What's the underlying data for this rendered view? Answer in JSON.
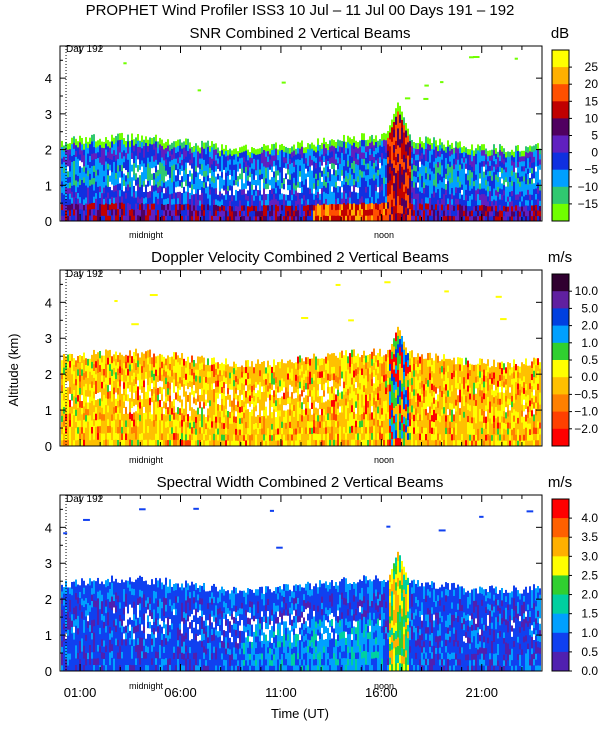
{
  "header": {
    "title": "PROPHET Wind Profiler ISS3  10 Jul – 11 Jul 00 Days 191 – 192"
  },
  "common": {
    "day_marker": "Day 192",
    "midnight_label": "midnight",
    "noon_label": "noon",
    "ylabel": "Altitude (km)",
    "xlabel": "Time (UT)",
    "y_ticks": [
      0,
      1,
      2,
      3,
      4
    ],
    "x_ticks": [
      "01:00",
      "06:00",
      "11:00",
      "16:00",
      "21:00"
    ],
    "x_tick_hours": [
      1,
      6,
      11,
      16,
      21
    ],
    "x_range_hours": [
      0,
      24
    ],
    "ylim_km": [
      0,
      4.9
    ]
  },
  "chart_data": [
    {
      "type": "heatmap",
      "title": "SNR Combined 2 Vertical Beams",
      "units": "dB",
      "colorbar_labels": [
        "25",
        "20",
        "15",
        "10",
        "5",
        "0",
        "−5",
        "−10",
        "−15"
      ],
      "colorbar_colors": [
        "#ffff00",
        "#ffb000",
        "#ff5000",
        "#c00000",
        "#500060",
        "#6020c0",
        "#1030e0",
        "#00a0ff",
        "#30c870",
        "#70ff00"
      ],
      "echo_top_km": 2.2,
      "convective_peak_hour": 16.8,
      "convective_peak_km": 3.35
    },
    {
      "type": "heatmap",
      "title": "Doppler Velocity Combined 2 Vertical Beams",
      "units": "m/s",
      "colorbar_labels": [
        "10.0",
        "5.0",
        "2.0",
        "1.0",
        "0.5",
        "0.0",
        "−0.5",
        "−1.0",
        "−2.0"
      ],
      "colorbar_colors": [
        "#300030",
        "#6020a0",
        "#0040e0",
        "#00a0ff",
        "#30d030",
        "#ffff00",
        "#ffc000",
        "#ff8000",
        "#ff4000",
        "#ff0000"
      ],
      "echo_top_km": 2.45,
      "convective_peak_hour": 16.8,
      "convective_peak_km": 3.35
    },
    {
      "type": "heatmap",
      "title": "Spectral Width Combined 2 Vertical Beams",
      "units": "m/s",
      "colorbar_labels": [
        "4.0",
        "3.5",
        "3.0",
        "2.5",
        "2.0",
        "1.5",
        "1.0",
        "0.5",
        "0.0"
      ],
      "colorbar_colors": [
        "#ff0000",
        "#ff6000",
        "#ffb000",
        "#ffff00",
        "#30d030",
        "#00d0a0",
        "#00a0ff",
        "#1040f0",
        "#5020b0"
      ],
      "echo_top_km": 2.4,
      "convective_peak_hour": 16.8,
      "convective_peak_km": 3.35
    }
  ]
}
